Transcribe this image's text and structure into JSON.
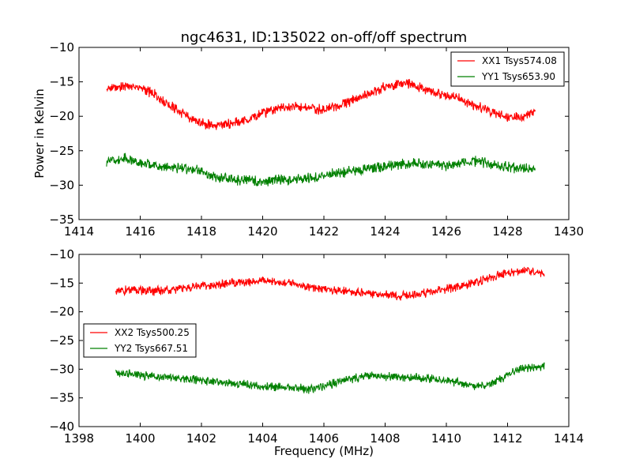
{
  "figure": {
    "title": "ngc4631, ID:135022 on-off/off spectrum",
    "ylabel": "Power in Kelvin",
    "xlabel": "Frequency (MHz)"
  },
  "chart_data": [
    {
      "type": "line",
      "xlim": [
        1414,
        1430
      ],
      "ylim": [
        -35,
        -10
      ],
      "xticks": [
        1414,
        1416,
        1418,
        1420,
        1422,
        1424,
        1426,
        1428,
        1430
      ],
      "yticks": [
        -10,
        -15,
        -20,
        -25,
        -30,
        -35
      ],
      "grid": false,
      "legend_position": "top-right",
      "series": [
        {
          "name": "XX1 Tsys574.08",
          "color": "#ff0000",
          "x": [
            1414.9,
            1415.5,
            1416.0,
            1416.5,
            1417.0,
            1417.5,
            1418.0,
            1418.5,
            1419.0,
            1419.5,
            1420.0,
            1420.5,
            1421.0,
            1421.5,
            1422.0,
            1422.5,
            1423.0,
            1423.5,
            1424.0,
            1424.5,
            1425.0,
            1425.5,
            1426.0,
            1426.5,
            1427.0,
            1427.5,
            1428.0,
            1428.5,
            1428.9
          ],
          "y": [
            -16.0,
            -15.5,
            -15.8,
            -17.0,
            -18.5,
            -20.0,
            -21.0,
            -21.3,
            -21.0,
            -20.5,
            -19.5,
            -19.0,
            -18.5,
            -18.8,
            -19.0,
            -18.5,
            -17.5,
            -16.8,
            -15.8,
            -15.2,
            -15.5,
            -16.5,
            -17.0,
            -17.5,
            -18.5,
            -19.5,
            -20.0,
            -20.2,
            -19.0
          ]
        },
        {
          "name": "YY1 Tsys653.90",
          "color": "#008000",
          "x": [
            1414.9,
            1415.5,
            1416.0,
            1416.5,
            1417.0,
            1417.5,
            1418.0,
            1418.5,
            1419.0,
            1419.5,
            1420.0,
            1420.5,
            1421.0,
            1421.5,
            1422.0,
            1422.5,
            1423.0,
            1423.5,
            1424.0,
            1424.5,
            1425.0,
            1425.5,
            1426.0,
            1426.5,
            1427.0,
            1427.5,
            1428.0,
            1428.5,
            1428.9
          ],
          "y": [
            -26.5,
            -26.2,
            -26.8,
            -27.2,
            -27.5,
            -27.6,
            -28.0,
            -29.0,
            -29.2,
            -29.3,
            -29.4,
            -29.2,
            -29.3,
            -29.0,
            -28.6,
            -28.2,
            -28.0,
            -27.6,
            -27.2,
            -27.0,
            -26.8,
            -27.0,
            -27.2,
            -26.8,
            -26.5,
            -27.0,
            -27.4,
            -27.6,
            -27.8
          ]
        }
      ]
    },
    {
      "type": "line",
      "xlim": [
        1398,
        1414
      ],
      "ylim": [
        -40,
        -10
      ],
      "xticks": [
        1398,
        1400,
        1402,
        1404,
        1406,
        1408,
        1410,
        1412,
        1414
      ],
      "yticks": [
        -10,
        -15,
        -20,
        -25,
        -30,
        -35,
        -40
      ],
      "grid": false,
      "legend_position": "center-left",
      "series": [
        {
          "name": "XX2 Tsys500.25",
          "color": "#ff0000",
          "x": [
            1399.2,
            1399.5,
            1400.0,
            1400.5,
            1401.0,
            1401.5,
            1402.0,
            1402.5,
            1403.0,
            1403.5,
            1404.0,
            1404.5,
            1405.0,
            1405.5,
            1406.0,
            1406.5,
            1407.0,
            1407.5,
            1408.0,
            1408.5,
            1409.0,
            1409.5,
            1410.0,
            1410.5,
            1411.0,
            1411.5,
            1412.0,
            1412.5,
            1413.2
          ],
          "y": [
            -16.5,
            -16.2,
            -16.3,
            -16.4,
            -16.2,
            -15.8,
            -15.5,
            -15.3,
            -15.0,
            -14.8,
            -14.6,
            -14.8,
            -15.2,
            -15.6,
            -16.0,
            -16.3,
            -16.5,
            -16.8,
            -17.0,
            -17.3,
            -17.0,
            -16.5,
            -16.0,
            -15.5,
            -14.8,
            -14.0,
            -13.2,
            -12.8,
            -13.5
          ]
        },
        {
          "name": "YY2 Tsys667.51",
          "color": "#008000",
          "x": [
            1399.2,
            1399.5,
            1400.0,
            1400.5,
            1401.0,
            1401.5,
            1402.0,
            1402.5,
            1403.0,
            1403.5,
            1404.0,
            1404.5,
            1405.0,
            1405.5,
            1406.0,
            1406.5,
            1407.0,
            1407.5,
            1408.0,
            1408.5,
            1409.0,
            1409.5,
            1410.0,
            1410.5,
            1411.0,
            1411.5,
            1412.0,
            1412.5,
            1413.2
          ],
          "y": [
            -30.5,
            -30.8,
            -31.0,
            -31.3,
            -31.5,
            -31.6,
            -31.9,
            -32.2,
            -32.5,
            -32.8,
            -33.0,
            -33.1,
            -33.3,
            -33.4,
            -33.0,
            -32.2,
            -31.5,
            -31.2,
            -31.3,
            -31.4,
            -31.5,
            -31.7,
            -32.0,
            -32.5,
            -33.0,
            -32.5,
            -31.0,
            -29.8,
            -29.5
          ]
        }
      ]
    }
  ]
}
